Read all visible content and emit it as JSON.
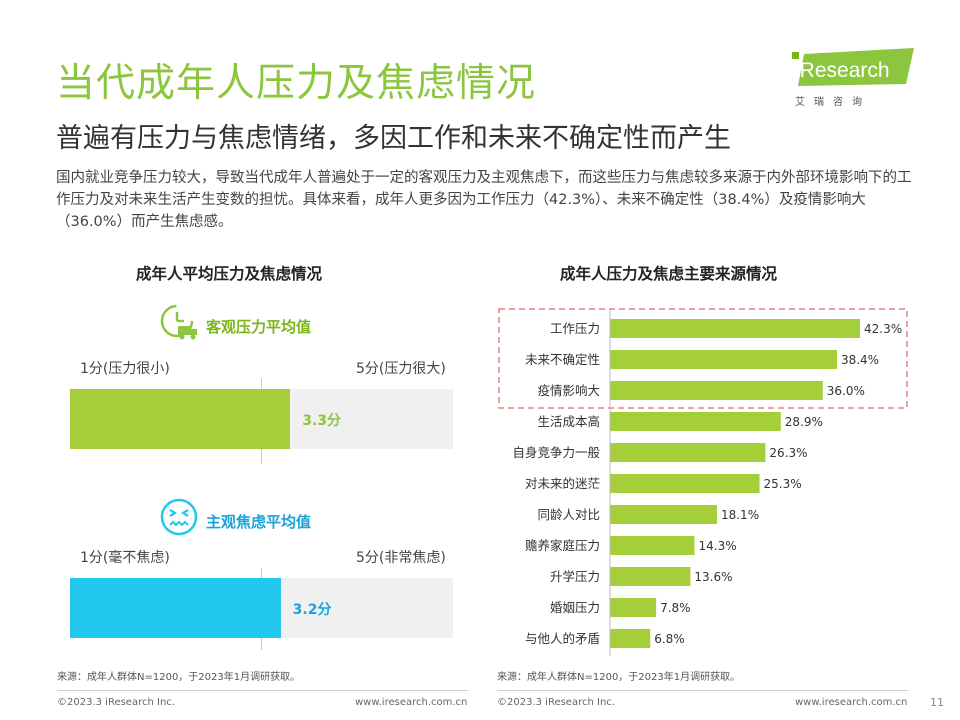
{
  "header": {
    "title": "当代成年人压力及焦虑情况",
    "subtitle": "普遍有压力与焦虑情绪，多因工作和未来不确定性而产生",
    "description": "国内就业竞争压力较大，导致当代成年人普遍处于一定的客观压力及主观焦虑下，而这些压力与焦虑较多来源于内外部环境影响下的工作压力及对未来生活产生变数的担忧。具体来看，成年人更多因为工作压力（42.3%）、未来不确定性（38.4%）及疫情影响大（36.0%）而产生焦虑感。"
  },
  "logo": {
    "brand": "iResearch",
    "cn": "艾瑞咨询",
    "color": "#8cc63f"
  },
  "left_panel": {
    "title": "成年人平均压力及焦虑情况",
    "objective": {
      "heading": "客观压力平均值",
      "icon": "timer-truck-icon",
      "min_label": "1分(压力很小)",
      "max_label": "5分(压力很大)",
      "value": 3.3,
      "value_label": "3.3分",
      "scale": [
        1,
        5
      ],
      "color": "#a4cf39"
    },
    "subjective": {
      "heading": "主观焦虑平均值",
      "icon": "anxious-face-icon",
      "min_label": "1分(毫不焦虑)",
      "max_label": "5分(非常焦虑)",
      "value": 3.2,
      "value_label": "3.2分",
      "scale": [
        1,
        5
      ],
      "color": "#22c7ef"
    },
    "source": "来源：成年人群体N=1200，于2023年1月调研获取。"
  },
  "chart_data": {
    "type": "bar",
    "orientation": "horizontal",
    "title": "成年人压力及焦虑主要来源情况",
    "categories": [
      "工作压力",
      "未来不确定性",
      "疫情影响大",
      "生活成本高",
      "自身竞争力一般",
      "对未来的迷茫",
      "同龄人对比",
      "赡养家庭压力",
      "升学压力",
      "婚姻压力",
      "与他人的矛盾"
    ],
    "values": [
      42.3,
      38.4,
      36.0,
      28.9,
      26.3,
      25.3,
      18.1,
      14.3,
      13.6,
      7.8,
      6.8
    ],
    "value_labels": [
      "42.3%",
      "38.4%",
      "36.0%",
      "28.9%",
      "26.3%",
      "25.3%",
      "18.1%",
      "14.3%",
      "13.6%",
      "7.8%",
      "6.8%"
    ],
    "xlim": [
      0,
      42.3
    ],
    "highlight_top_n": 3,
    "bar_color": "#a4cf39",
    "highlight_border_color": "#e8a2a2",
    "grid": false,
    "legend": "none"
  },
  "right_panel": {
    "source": "来源：成年人群体N=1200，于2023年1月调研获取。"
  },
  "footer": {
    "copyright": "©2023.3 iResearch Inc.",
    "website": "www.iresearch.com.cn",
    "page": "11"
  }
}
